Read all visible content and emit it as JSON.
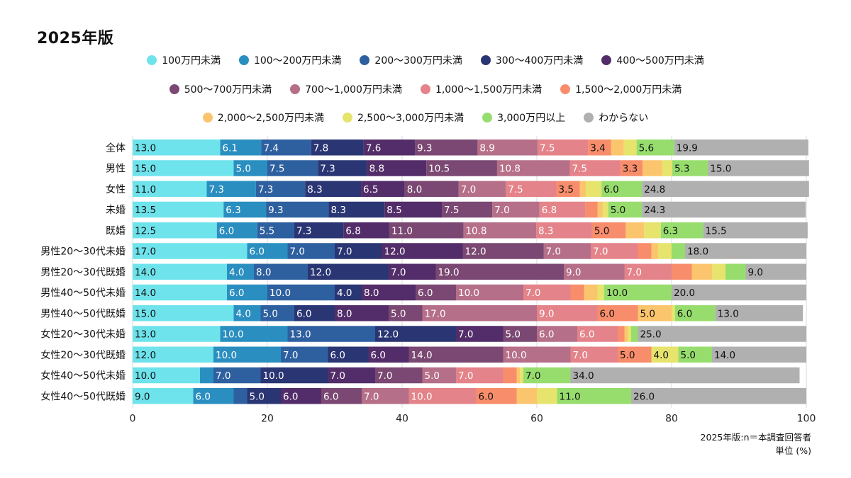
{
  "chart_data": {
    "type": "bar",
    "orientation": "horizontal",
    "stacked": true,
    "title": "2025年版",
    "xlim": [
      0,
      100
    ],
    "x_ticks": [
      "0",
      "20",
      "40",
      "60",
      "80",
      "100"
    ],
    "grid": true,
    "legend_position": "top",
    "categories": [
      "全体",
      "男性",
      "女性",
      "未婚",
      "既婚",
      "男性20〜30代未婚",
      "男性20〜30代既婚",
      "男性40〜50代未婚",
      "男性40〜50代既婚",
      "女性20〜30代未婚",
      "女性20〜30代既婚",
      "女性40〜50代未婚",
      "女性40〜50代既婚"
    ],
    "series": [
      {
        "name": "100万円未満",
        "color": "#6ee3ec",
        "values": [
          13.0,
          15.0,
          11.0,
          13.5,
          12.5,
          17.0,
          14.0,
          14.0,
          15.0,
          13.0,
          12.0,
          10.0,
          9.0
        ],
        "labels": [
          "13.0",
          "15.0",
          "11.0",
          "13.5",
          "12.5",
          "17.0",
          "14.0",
          "14.0",
          "15.0",
          "13.0",
          "12.0",
          "10.0",
          "9.0"
        ]
      },
      {
        "name": "100〜200万円未満",
        "color": "#2a8fc0",
        "values": [
          6.1,
          5.0,
          7.3,
          6.3,
          6.0,
          6.0,
          4.0,
          6.0,
          4.0,
          10.0,
          10.0,
          2.0,
          6.0
        ],
        "labels": [
          "6.1",
          "5.0",
          "7.3",
          "6.3",
          "6.0",
          "6.0",
          "4.0",
          "6.0",
          "4.0",
          "10.0",
          "10.0",
          "",
          "6.0"
        ]
      },
      {
        "name": "200〜300万円未満",
        "color": "#2e60a0",
        "values": [
          7.4,
          7.5,
          7.3,
          9.3,
          5.5,
          7.0,
          8.0,
          10.0,
          5.0,
          13.0,
          7.0,
          7.0,
          2.0
        ],
        "labels": [
          "7.4",
          "7.5",
          "7.3",
          "9.3",
          "5.5",
          "7.0",
          "8.0",
          "10.0",
          "5.0",
          "13.0",
          "7.0",
          "7.0",
          ""
        ]
      },
      {
        "name": "300〜400万円未満",
        "color": "#2a3573",
        "values": [
          7.8,
          7.3,
          8.3,
          8.3,
          7.3,
          7.0,
          12.0,
          4.0,
          6.0,
          12.0,
          6.0,
          10.0,
          5.0
        ],
        "labels": [
          "7.8",
          "7.3",
          "8.3",
          "8.3",
          "7.3",
          "7.0",
          "12.0",
          "4.0",
          "6.0",
          "12.0",
          "6.0",
          "10.0",
          "5.0"
        ]
      },
      {
        "name": "400〜500万円未満",
        "color": "#532d69",
        "values": [
          7.6,
          8.8,
          6.5,
          8.5,
          6.8,
          12.0,
          7.0,
          8.0,
          8.0,
          7.0,
          6.0,
          7.0,
          6.0
        ],
        "labels": [
          "7.6",
          "8.8",
          "6.5",
          "8.5",
          "6.8",
          "12.0",
          "7.0",
          "8.0",
          "8.0",
          "7.0",
          "6.0",
          "7.0",
          "6.0"
        ]
      },
      {
        "name": "500〜700万円未満",
        "color": "#7a4872",
        "values": [
          9.3,
          10.5,
          8.0,
          7.5,
          11.0,
          12.0,
          19.0,
          6.0,
          5.0,
          5.0,
          14.0,
          7.0,
          6.0
        ],
        "labels": [
          "9.3",
          "10.5",
          "8.0",
          "7.5",
          "11.0",
          "12.0",
          "19.0",
          "6.0",
          "5.0",
          "5.0",
          "14.0",
          "7.0",
          "6.0"
        ]
      },
      {
        "name": "700〜1,000万円未満",
        "color": "#b66f88",
        "values": [
          8.9,
          10.8,
          7.0,
          7.0,
          10.8,
          7.0,
          9.0,
          10.0,
          17.0,
          6.0,
          10.0,
          5.0,
          7.0
        ],
        "labels": [
          "8.9",
          "10.8",
          "7.0",
          "7.0",
          "10.8",
          "7.0",
          "9.0",
          "10.0",
          "17.0",
          "6.0",
          "10.0",
          "5.0",
          "7.0"
        ]
      },
      {
        "name": "1,000〜1,500万円未満",
        "color": "#e4838a",
        "values": [
          7.5,
          7.5,
          7.5,
          6.8,
          8.3,
          7.0,
          7.0,
          7.0,
          9.0,
          6.0,
          7.0,
          7.0,
          10.0
        ],
        "labels": [
          "7.5",
          "7.5",
          "7.5",
          "6.8",
          "8.3",
          "7.0",
          "7.0",
          "7.0",
          "9.0",
          "6.0",
          "7.0",
          "7.0",
          "10.0"
        ]
      },
      {
        "name": "1,500〜2,000万円未満",
        "color": "#f88d6c",
        "values": [
          3.4,
          3.3,
          3.5,
          1.8,
          5.0,
          2.0,
          3.0,
          2.0,
          6.0,
          1.0,
          5.0,
          2.0,
          6.0
        ],
        "labels": [
          "3.4",
          "3.3",
          "3.5",
          "",
          "5.0",
          "",
          "",
          "",
          "6.0",
          "",
          "5.0",
          "",
          "6.0"
        ]
      },
      {
        "name": "2,000〜2,500万円未満",
        "color": "#fbc56e",
        "values": [
          1.9,
          2.9,
          0.9,
          0.8,
          2.7,
          1.0,
          3.0,
          2.0,
          5.0,
          0.5,
          0.0,
          0.5,
          3.0
        ],
        "labels": [
          "",
          "",
          "",
          "",
          "",
          "",
          "",
          "",
          "5.0",
          "",
          "",
          "",
          ""
        ]
      },
      {
        "name": "2,500〜3,000万円未満",
        "color": "#e6e46c",
        "values": [
          1.9,
          1.5,
          2.3,
          0.8,
          2.5,
          2.0,
          2.0,
          1.0,
          0.5,
          0.5,
          4.0,
          0.5,
          3.0
        ],
        "labels": [
          "",
          "",
          "",
          "",
          "",
          "",
          "",
          "",
          "",
          "",
          "4.0",
          "",
          ""
        ]
      },
      {
        "name": "3,000万円以上",
        "color": "#97dd6e",
        "values": [
          5.6,
          5.3,
          6.0,
          5.0,
          6.3,
          2.0,
          3.0,
          10.0,
          6.0,
          1.0,
          5.0,
          7.0,
          11.0
        ],
        "labels": [
          "5.6",
          "5.3",
          "6.0",
          "5.0",
          "6.3",
          "",
          "",
          "10.0",
          "6.0",
          "",
          "5.0",
          "7.0",
          "11.0"
        ]
      },
      {
        "name": "わからない",
        "color": "#b0b0b0",
        "values": [
          19.9,
          15.0,
          24.8,
          24.3,
          15.5,
          18.0,
          9.0,
          20.0,
          13.0,
          25.0,
          14.0,
          34.0,
          26.0
        ],
        "labels": [
          "19.9",
          "15.0",
          "24.8",
          "24.3",
          "15.5",
          "18.0",
          "9.0",
          "20.0",
          "13.0",
          "25.0",
          "14.0",
          "34.0",
          "26.0"
        ]
      }
    ],
    "note": [
      "2025年版:n＝本調査回答者",
      "単位 (%)"
    ]
  }
}
